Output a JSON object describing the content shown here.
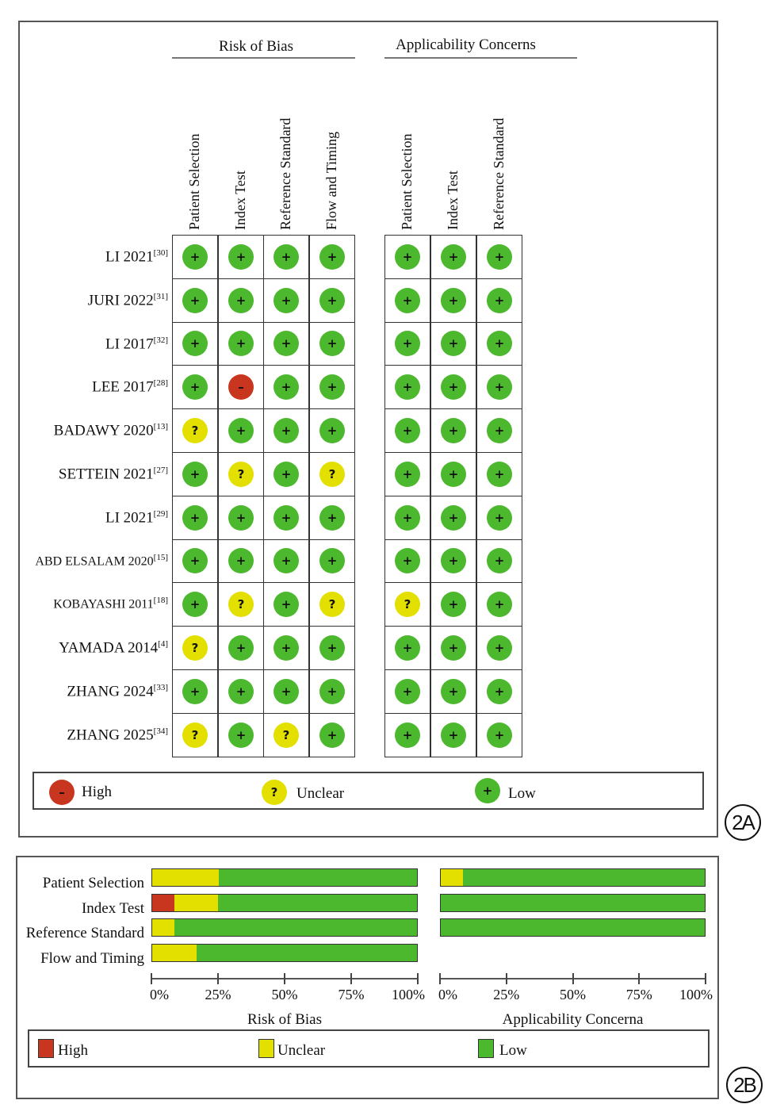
{
  "colors": {
    "high": "#c8361f",
    "unclear": "#e3e000",
    "low": "#4cb82e"
  },
  "panel_a": {
    "badge": "2A",
    "headers": {
      "rob": "Risk of Bias",
      "app": "Applicability Concerns"
    },
    "rob_columns": [
      "Patient Selection",
      "Index Test",
      "Reference Standard",
      "Flow and Timing"
    ],
    "app_columns": [
      "Patient Selection",
      "Index Test",
      "Reference Standard"
    ],
    "symbols": {
      "high": "–",
      "unclear": "?",
      "low": "+"
    },
    "studies": [
      {
        "name": "LI 2021",
        "ref": "[30]",
        "rob": [
          "low",
          "low",
          "low",
          "low"
        ],
        "app": [
          "low",
          "low",
          "low"
        ]
      },
      {
        "name": "JURI 2022",
        "ref": "[31]",
        "rob": [
          "low",
          "low",
          "low",
          "low"
        ],
        "app": [
          "low",
          "low",
          "low"
        ]
      },
      {
        "name": "LI 2017",
        "ref": "[32]",
        "rob": [
          "low",
          "low",
          "low",
          "low"
        ],
        "app": [
          "low",
          "low",
          "low"
        ]
      },
      {
        "name": "LEE 2017",
        "ref": "[28]",
        "rob": [
          "low",
          "high",
          "low",
          "low"
        ],
        "app": [
          "low",
          "low",
          "low"
        ]
      },
      {
        "name": "BADAWY 2020",
        "ref": "[13]",
        "rob": [
          "unclear",
          "low",
          "low",
          "low"
        ],
        "app": [
          "low",
          "low",
          "low"
        ]
      },
      {
        "name": "SETTEIN 2021",
        "ref": "[27]",
        "rob": [
          "low",
          "unclear",
          "low",
          "unclear"
        ],
        "app": [
          "low",
          "low",
          "low"
        ]
      },
      {
        "name": "LI 2021",
        "ref": "[29]",
        "rob": [
          "low",
          "low",
          "low",
          "low"
        ],
        "app": [
          "low",
          "low",
          "low"
        ]
      },
      {
        "name": "ABD ELSALAM 2020",
        "ref": "[15]",
        "rob": [
          "low",
          "low",
          "low",
          "low"
        ],
        "app": [
          "low",
          "low",
          "low"
        ]
      },
      {
        "name": "KOBAYASHI 2011",
        "ref": "[18]",
        "rob": [
          "low",
          "unclear",
          "low",
          "unclear"
        ],
        "app": [
          "unclear",
          "low",
          "low"
        ]
      },
      {
        "name": "YAMADA 2014",
        "ref": "[4]",
        "rob": [
          "unclear",
          "low",
          "low",
          "low"
        ],
        "app": [
          "low",
          "low",
          "low"
        ]
      },
      {
        "name": "ZHANG 2024",
        "ref": "[33]",
        "rob": [
          "low",
          "low",
          "low",
          "low"
        ],
        "app": [
          "low",
          "low",
          "low"
        ]
      },
      {
        "name": "ZHANG 2025",
        "ref": "[34]",
        "rob": [
          "unclear",
          "low",
          "unclear",
          "low"
        ],
        "app": [
          "low",
          "low",
          "low"
        ]
      }
    ],
    "legend": {
      "high": "High",
      "unclear": "Unclear",
      "low": "Low"
    }
  },
  "chart_data": {
    "type": "bar",
    "stacked": true,
    "badge": "2B",
    "categories": [
      "Patient Selection",
      "Index Test",
      "Reference Standard",
      "Flow and Timing"
    ],
    "xticks": [
      "0%",
      "25%",
      "50%",
      "75%",
      "100%"
    ],
    "xlim": [
      0,
      100
    ],
    "panels": [
      {
        "title": "Risk of Bias",
        "series": [
          {
            "name": "High",
            "values": [
              0,
              8.3,
              0,
              0
            ]
          },
          {
            "name": "Unclear",
            "values": [
              25,
              16.7,
              8.3,
              16.7
            ]
          },
          {
            "name": "Low",
            "values": [
              75,
              75,
              91.7,
              83.3
            ]
          }
        ]
      },
      {
        "title": "Applicability Concerna",
        "series": [
          {
            "name": "High",
            "values": [
              0,
              0,
              0
            ]
          },
          {
            "name": "Unclear",
            "values": [
              8.3,
              0,
              0
            ]
          },
          {
            "name": "Low",
            "values": [
              91.7,
              100,
              100
            ]
          }
        ]
      }
    ],
    "legend": [
      "High",
      "Unclear",
      "Low"
    ],
    "legend_position": "bottom"
  }
}
